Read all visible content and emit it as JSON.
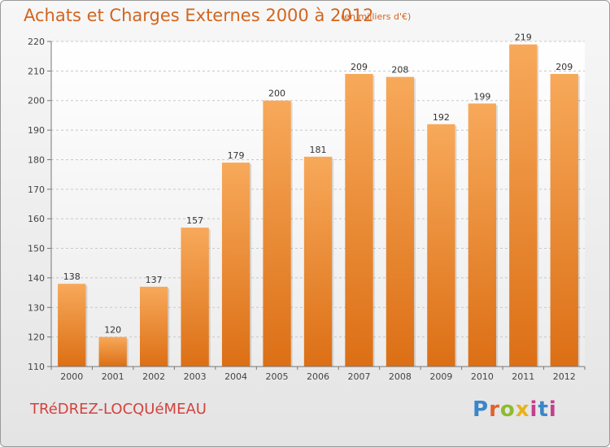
{
  "header": {
    "title": "Achats et Charges Externes 2000 à 2012",
    "subtitle": "(en milliers d'€)"
  },
  "footer": {
    "town": "TRéDREZ-LOCQUéMEAU",
    "logo": [
      "P",
      "r",
      "o",
      "x",
      "i",
      "t",
      "i"
    ]
  },
  "colors": {
    "bar_top": "#f7a95a",
    "bar_bottom": "#dc6f15",
    "text": "#d2651f"
  },
  "chart_data": {
    "type": "bar",
    "title": "Achats et Charges Externes 2000 à 2012",
    "subtitle": "(en milliers d'€)",
    "categories": [
      "2000",
      "2001",
      "2002",
      "2003",
      "2004",
      "2005",
      "2006",
      "2007",
      "2008",
      "2009",
      "2010",
      "2011",
      "2012"
    ],
    "values": [
      138,
      120,
      137,
      157,
      179,
      200,
      181,
      209,
      208,
      192,
      199,
      219,
      209
    ],
    "ylim": [
      110,
      220
    ],
    "yticks": [
      110,
      120,
      130,
      140,
      150,
      160,
      170,
      180,
      190,
      200,
      210,
      220
    ],
    "grid": true,
    "legend": "none",
    "xlabel": "",
    "ylabel": ""
  }
}
